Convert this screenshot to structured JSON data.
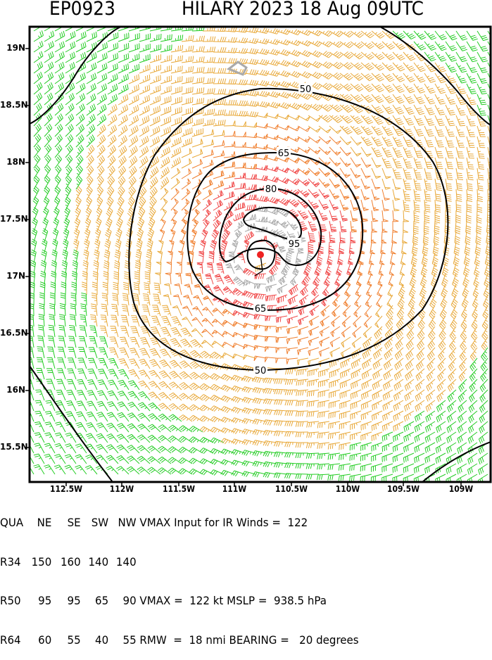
{
  "header": {
    "storm_id": "EP0923",
    "storm_title": "HILARY 2023 18 Aug 09UTC"
  },
  "chart_data": {
    "type": "wind_barb_contour",
    "title": "EP0923 HILARY 2023 18 Aug 09UTC",
    "xlabel": "Longitude",
    "ylabel": "Latitude",
    "x_ticks": [
      "112.5W",
      "112W",
      "111.5W",
      "111W",
      "110.5W",
      "110W",
      "109.5W",
      "109W"
    ],
    "y_ticks": [
      "19N",
      "18.5N",
      "18N",
      "17.5N",
      "17N",
      "16.5N",
      "16N",
      "15.5N"
    ],
    "xlim": [
      -112.83,
      -108.75
    ],
    "ylim": [
      15.2,
      19.2
    ],
    "center": {
      "lon": -110.78,
      "lat": 17.19
    },
    "contour_levels_kt": [
      34,
      50,
      65,
      80,
      95
    ],
    "contour_labels": [
      "50",
      "50",
      "65",
      "65",
      "80",
      "95"
    ],
    "barb_colors": {
      "below_34kt": "#22cc22",
      "34_50kt": "#e8a838",
      "50_64kt": "#f08030",
      "64_95kt": "#f04848",
      "above_95kt": "#a8a8a8"
    },
    "center_marker_color": "#ee2222",
    "grid": false,
    "legend": "none"
  },
  "info_panel": {
    "header_row": [
      "QUA",
      "NE",
      "SE",
      "SW",
      "NW"
    ],
    "rows": [
      {
        "label": "R34",
        "values": [
          "150",
          "160",
          "140",
          "140"
        ]
      },
      {
        "label": "R50",
        "values": [
          "95",
          "95",
          "65",
          "90"
        ]
      },
      {
        "label": "R64",
        "values": [
          "60",
          "55",
          "40",
          "55"
        ]
      }
    ],
    "vmax_input_text": "VMAX Input for IR Winds =",
    "vmax_input_value": "122",
    "vmax_text": "VMAX =",
    "vmax_value": "122 kt",
    "mslp_text": "MSLP =",
    "mslp_value": "938.5 hPa",
    "rmw_text": "RMW  =",
    "rmw_value": "18 nmi",
    "bearing_text": "BEARING =",
    "bearing_value": "20 degrees"
  }
}
